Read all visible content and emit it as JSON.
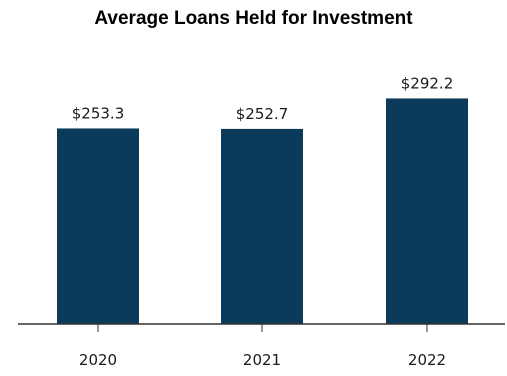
{
  "chart_data": {
    "type": "bar",
    "title": "Average Loans Held for Investment",
    "categories": [
      "2020",
      "2021",
      "2022"
    ],
    "values": [
      253.3,
      252.7,
      292.2
    ],
    "value_labels": [
      "$253.3",
      "$252.7",
      "$292.2"
    ],
    "xlabel": "",
    "ylabel": "",
    "ylim": [
      0,
      300
    ],
    "grid": false,
    "legend": "none",
    "colors": {
      "bar": "#0c3a5a",
      "axis": "#333333"
    }
  }
}
